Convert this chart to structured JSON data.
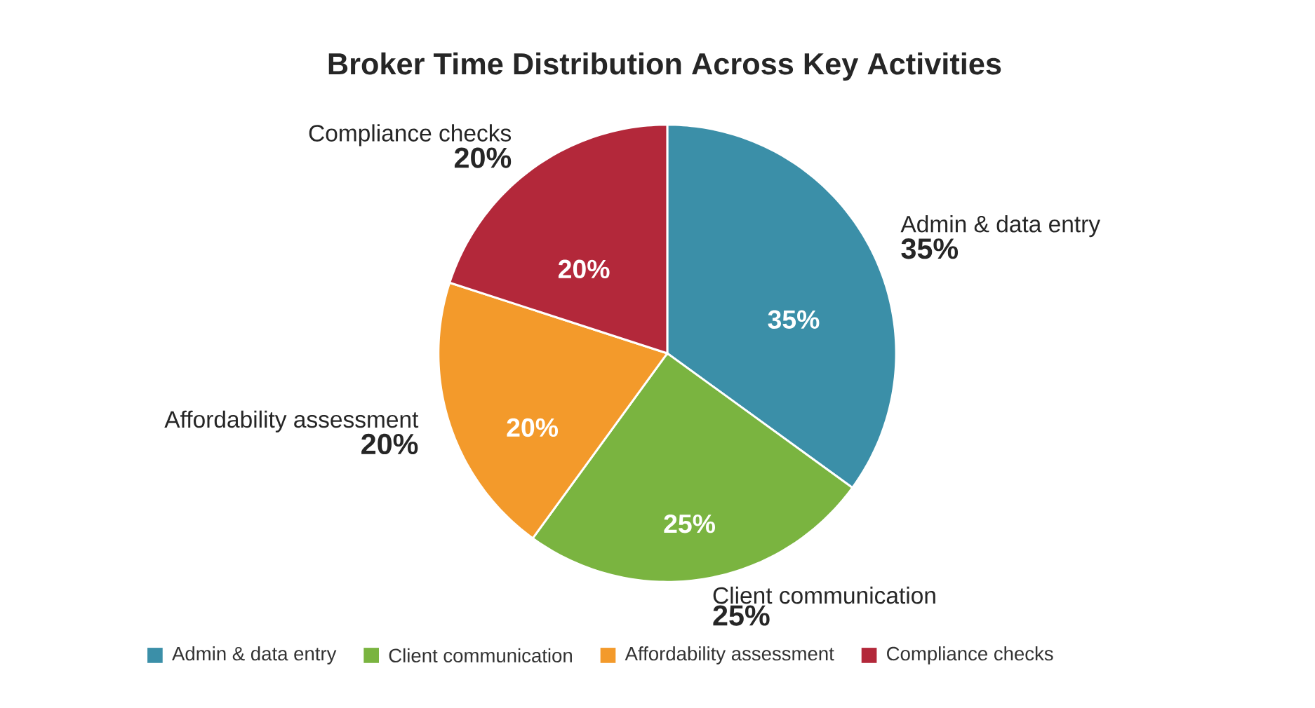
{
  "chart_data": {
    "type": "pie",
    "title": "Broker Time Distribution Across Key Activities",
    "categories": [
      "Admin & data entry",
      "Client communication",
      "Affordability assessment",
      "Compliance checks"
    ],
    "values": [
      35,
      25,
      20,
      20
    ],
    "value_labels": [
      "35%",
      "25%",
      "20%",
      "20%"
    ],
    "colors": [
      "#3b8fa8",
      "#7ab440",
      "#f39a2b",
      "#b3283a"
    ],
    "legend": "bottom"
  }
}
